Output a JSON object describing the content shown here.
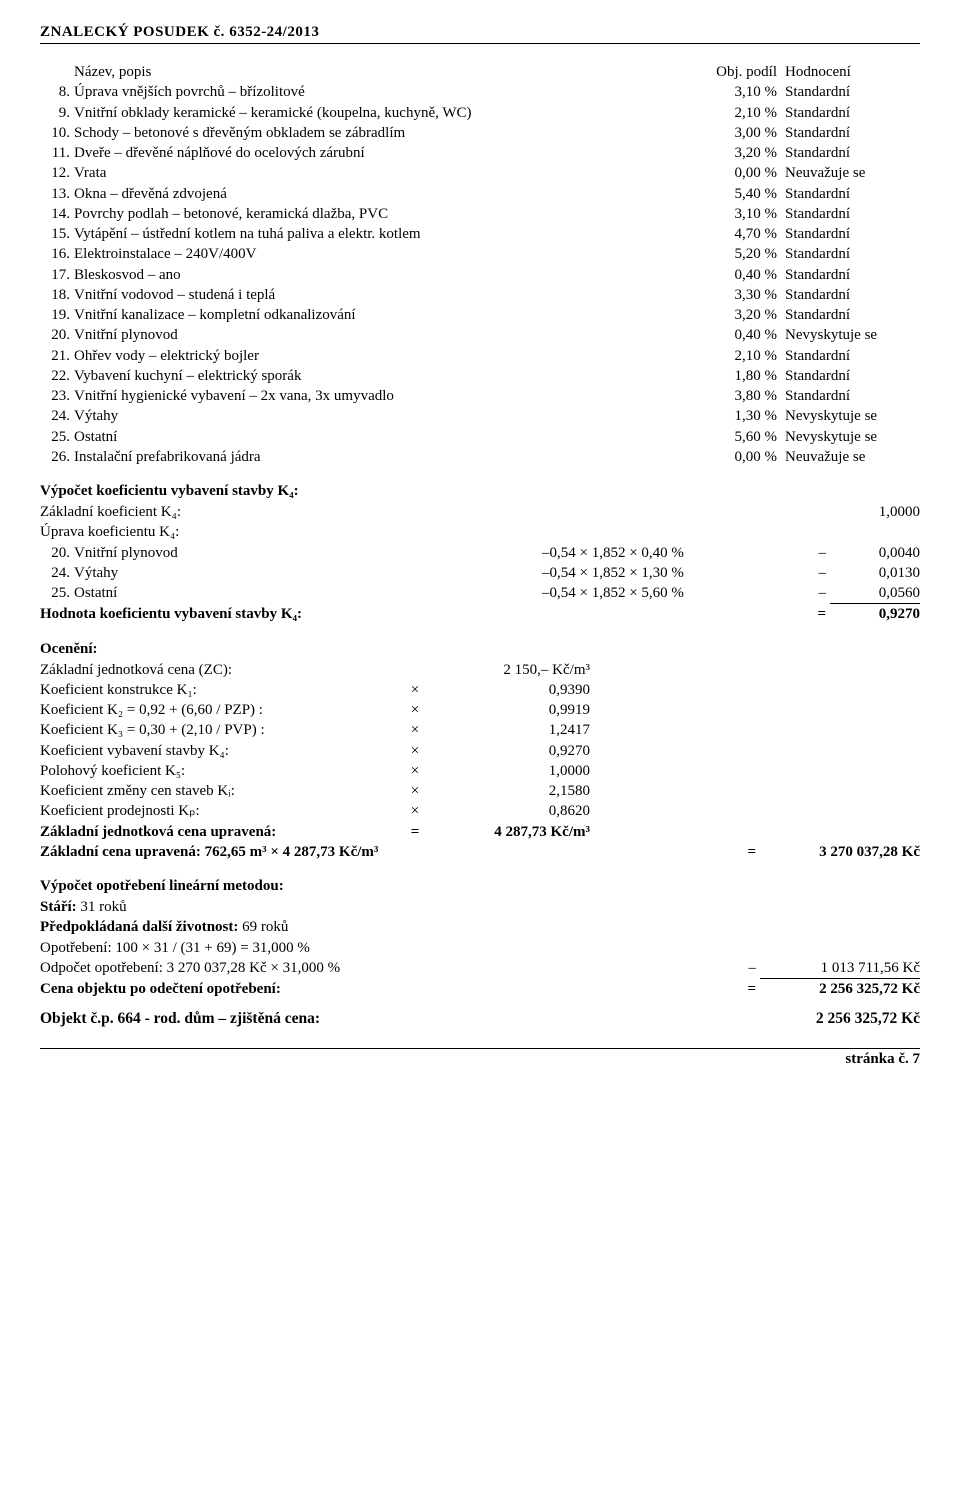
{
  "header": {
    "left": "ZNALECKÝ   POSUDEK č.",
    "num": "6352-24/2013"
  },
  "table": {
    "head": {
      "name": "Název, popis",
      "val": "Obj. podíl",
      "hod": "Hodnocení"
    },
    "rows": [
      {
        "n": "8.",
        "name": "Úprava vnějších povrchů – břízolitové",
        "v": "3,10 %",
        "h": "Standardní"
      },
      {
        "n": "9.",
        "name": "Vnitřní obklady keramické – keramické (koupelna, kuchyně, WC)",
        "v": "2,10 %",
        "h": "Standardní"
      },
      {
        "n": "10.",
        "name": "Schody – betonové s dřevěným obkladem se zábradlím",
        "v": "3,00 %",
        "h": "Standardní"
      },
      {
        "n": "11.",
        "name": "Dveře – dřevěné náplňové do ocelových zárubní",
        "v": "3,20 %",
        "h": "Standardní"
      },
      {
        "n": "12.",
        "name": "Vrata",
        "v": "0,00 %",
        "h": "Neuvažuje se"
      },
      {
        "n": "13.",
        "name": "Okna – dřevěná zdvojená",
        "v": "5,40 %",
        "h": "Standardní"
      },
      {
        "n": "14.",
        "name": "Povrchy podlah – betonové, keramická dlažba, PVC",
        "v": "3,10 %",
        "h": "Standardní"
      },
      {
        "n": "15.",
        "name": "Vytápění – ústřední kotlem na tuhá paliva a elektr. kotlem",
        "v": "4,70 %",
        "h": "Standardní"
      },
      {
        "n": "16.",
        "name": "Elektroinstalace – 240V/400V",
        "v": "5,20 %",
        "h": "Standardní"
      },
      {
        "n": "17.",
        "name": "Bleskosvod – ano",
        "v": "0,40 %",
        "h": "Standardní"
      },
      {
        "n": "18.",
        "name": "Vnitřní vodovod – studená i teplá",
        "v": "3,30 %",
        "h": "Standardní"
      },
      {
        "n": "19.",
        "name": "Vnitřní kanalizace – kompletní odkanalizování",
        "v": "3,20 %",
        "h": "Standardní"
      },
      {
        "n": "20.",
        "name": "Vnitřní plynovod",
        "v": "0,40 %",
        "h": "Nevyskytuje se"
      },
      {
        "n": "21.",
        "name": "Ohřev vody – elektrický bojler",
        "v": "2,10 %",
        "h": "Standardní"
      },
      {
        "n": "22.",
        "name": "Vybavení kuchyní – elektrický   sporák",
        "v": "1,80 %",
        "h": "Standardní"
      },
      {
        "n": "23.",
        "name": "Vnitřní hygienické vybavení – 2x vana, 3x umyvadlo",
        "v": "3,80 %",
        "h": "Standardní"
      },
      {
        "n": "24.",
        "name": "Výtahy",
        "v": "1,30 %",
        "h": "Nevyskytuje se"
      },
      {
        "n": "25.",
        "name": "Ostatní",
        "v": "5,60 %",
        "h": "Nevyskytuje se"
      },
      {
        "n": "26.",
        "name": "Instalační prefabrikovaná jádra",
        "v": "0,00 %",
        "h": "Neuvažuje se"
      }
    ]
  },
  "k4": {
    "title": "Výpočet koeficientu vybavení stavby K₄:",
    "base_label": "Základní koeficient K₄:",
    "base_val": "1,0000",
    "adjust_label": "Úprava koeficientu K₄:",
    "lines": [
      {
        "n": "20.",
        "name": "Vnitřní plynovod",
        "expr": "–0,54 × 1,852 × 0,40 %",
        "sign": "–",
        "val": "0,0040"
      },
      {
        "n": "24.",
        "name": "Výtahy",
        "expr": "–0,54 × 1,852 × 1,30 %",
        "sign": "–",
        "val": "0,0130"
      },
      {
        "n": "25.",
        "name": "Ostatní",
        "expr": "–0,54 × 1,852 × 5,60 %",
        "sign": "–",
        "val": "0,0560"
      }
    ],
    "result_label": "Hodnota koeficientu vybavení stavby K₄:",
    "result_sign": "=",
    "result_val": "0,9270"
  },
  "oc": {
    "title": "Ocenění:",
    "rows": [
      {
        "l": "Základní jednotková cena (ZC):",
        "s": "",
        "v": "2 150,–  Kč/m³"
      },
      {
        "l": "Koeficient konstrukce K₁:",
        "s": "×",
        "v": "0,9390"
      },
      {
        "l": "Koeficient K₂ = 0,92 + (6,60 / PZP) :",
        "s": "×",
        "v": "0,9919"
      },
      {
        "l": "Koeficient K₃ = 0,30 + (2,10 / PVP) :",
        "s": "×",
        "v": "1,2417"
      },
      {
        "l": "Koeficient vybavení stavby K₄:",
        "s": "×",
        "v": "0,9270"
      },
      {
        "l": "Polohový koeficient K₅:",
        "s": "×",
        "v": "1,0000"
      },
      {
        "l": "Koeficient změny cen staveb Kᵢ:",
        "s": "×",
        "v": "2,1580"
      },
      {
        "l": "Koeficient prodejnosti Kₚ:",
        "s": "×",
        "v": "0,8620"
      }
    ],
    "zc_upr": {
      "l": "Základní jednotková cena upravená:",
      "s": "=",
      "v": "4 287,73 Kč/m³"
    },
    "zc_line": {
      "text": "Základní cena upravená: 762,65 m³ × 4 287,73 Kč/m³",
      "eq": "=",
      "val": "3 270 037,28 Kč"
    }
  },
  "wear": {
    "title": "Výpočet opotřebení lineární metodou:",
    "age_label": "Stáří:",
    "age_val": "31 roků",
    "life_label": "Předpokládaná další životnost:",
    "life_val": "69 roků",
    "calc": "Opotřebení: 100 × 31 / (31 + 69) = 31,000 %",
    "ded_label": "Odpočet opotřebení: 3 270 037,28 Kč × 31,000 %",
    "ded_sign": "–",
    "ded_val": "1 013 711,56 Kč",
    "after_label": "Cena objektu po odečtení opotřebení:",
    "after_sign": "=",
    "after_val": "2 256 325,72 Kč"
  },
  "final": {
    "label": "Objekt č.p. 664 - rod. dům – zjištěná cena:",
    "val": "2 256 325,72 Kč"
  },
  "footer": {
    "text": "stránka č.  7"
  }
}
